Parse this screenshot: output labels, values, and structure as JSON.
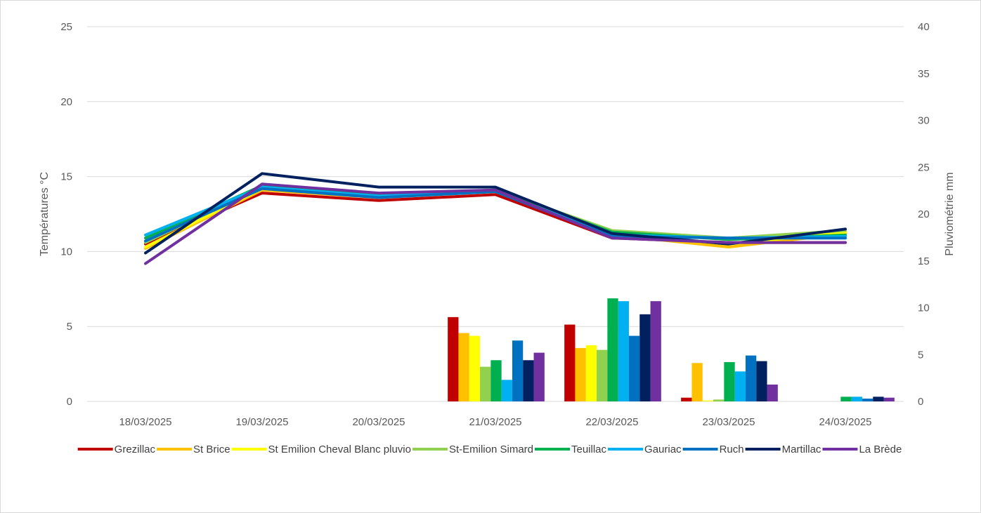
{
  "chart_data": {
    "type": "bar+line",
    "title": "",
    "categories": [
      "18/03/2025",
      "19/03/2025",
      "20/03/2025",
      "21/03/2025",
      "22/03/2025",
      "23/03/2025",
      "24/03/2025"
    ],
    "y_left": {
      "label": "Températures °C",
      "range": [
        0,
        25
      ],
      "ticks": [
        "0",
        "5",
        "10",
        "15",
        "20",
        "25"
      ]
    },
    "y_right": {
      "label": "Pluviométrie mm",
      "range": [
        0,
        40
      ],
      "ticks": [
        "0",
        "5",
        "10",
        "15",
        "20",
        "25",
        "30",
        "35",
        "40"
      ]
    },
    "grid": true,
    "legend_position": "bottom",
    "series": [
      {
        "name": "Grezillac",
        "color": "#c00000",
        "rain": [
          0,
          0,
          0,
          9.0,
          8.2,
          0.4,
          0
        ],
        "temp": [
          10.5,
          13.9,
          13.4,
          13.8,
          10.9,
          10.6,
          10.6
        ]
      },
      {
        "name": "St Brice",
        "color": "#ffc000",
        "rain": [
          0,
          0,
          0,
          7.3,
          5.7,
          4.1,
          0
        ],
        "temp": [
          10.2,
          14.1,
          13.6,
          14.0,
          11.1,
          10.3,
          11.2
        ]
      },
      {
        "name": "St Emilion Cheval Blanc pluvio",
        "color": "#ffff00",
        "rain": [
          0,
          0,
          0,
          7.0,
          6.0,
          0.1,
          0
        ],
        "temp": [
          10.3,
          14.2,
          13.7,
          14.0,
          11.2,
          10.5,
          11.3
        ]
      },
      {
        "name": "St-Emilion Simard",
        "color": "#92d050",
        "rain": [
          0,
          0,
          0,
          3.7,
          5.5,
          0.2,
          0
        ],
        "temp": [
          10.6,
          14.3,
          13.8,
          14.1,
          11.4,
          10.9,
          11.4
        ]
      },
      {
        "name": "Teuillac",
        "color": "#00b050",
        "rain": [
          0,
          0,
          0,
          4.4,
          11.0,
          4.2,
          0.5
        ],
        "temp": [
          10.9,
          14.4,
          13.8,
          14.1,
          11.3,
          10.8,
          11.1
        ]
      },
      {
        "name": "Gauriac",
        "color": "#00b0f0",
        "rain": [
          0,
          0,
          0,
          2.3,
          10.7,
          3.2,
          0.5
        ],
        "temp": [
          11.1,
          14.3,
          13.7,
          14.0,
          11.1,
          10.9,
          11.0
        ]
      },
      {
        "name": "Ruch",
        "color": "#0070c0",
        "rain": [
          0,
          0,
          0,
          6.5,
          7.0,
          4.9,
          0.3
        ],
        "temp": [
          10.7,
          14.2,
          13.6,
          14.0,
          11.0,
          10.9,
          10.9
        ]
      },
      {
        "name": "Martillac",
        "color": "#002060",
        "rain": [
          0,
          0,
          0,
          4.4,
          9.3,
          4.3,
          0.5
        ],
        "temp": [
          9.9,
          15.2,
          14.3,
          14.3,
          11.2,
          10.5,
          11.5
        ]
      },
      {
        "name": "La Brède",
        "color": "#7030a0",
        "rain": [
          0,
          0,
          0,
          5.2,
          10.7,
          1.8,
          0.4
        ],
        "temp": [
          9.2,
          14.5,
          13.9,
          14.1,
          10.9,
          10.6,
          10.6
        ]
      }
    ]
  }
}
